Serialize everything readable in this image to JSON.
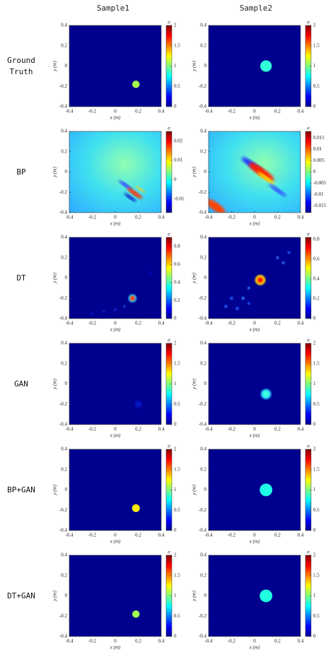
{
  "columns": [
    "Sample1",
    "Sample2"
  ],
  "axes": {
    "xlabel": "x (m)",
    "ylabel": "y (m)",
    "clabel": "σ",
    "xlim": [
      -0.4,
      0.4
    ],
    "ylim": [
      -0.4,
      0.4
    ],
    "xticks": [
      -0.4,
      -0.2,
      0,
      0.2,
      0.4
    ],
    "yticks": [
      -0.4,
      -0.2,
      0,
      0.2,
      0.4
    ]
  },
  "rows": [
    {
      "label": "Ground Truth",
      "panels": [
        {
          "clim": [
            0,
            2
          ],
          "cticks": [
            0,
            0.5,
            1,
            1.5,
            2
          ]
        },
        {
          "clim": [
            0,
            2
          ],
          "cticks": [
            0,
            0.5,
            1,
            1.5,
            2
          ]
        }
      ]
    },
    {
      "label": "BP",
      "panels": [
        {
          "clim": [
            -0.017,
            0.025
          ],
          "cticks": [
            -0.01,
            0,
            0.01,
            0.02
          ]
        },
        {
          "clim": [
            -0.018,
            0.018
          ],
          "cticks": [
            -0.015,
            -0.01,
            -0.005,
            0,
            0.005,
            0.01,
            0.015
          ]
        }
      ]
    },
    {
      "label": "DT",
      "panels": [
        {
          "clim": [
            0,
            0.9
          ],
          "cticks": [
            0,
            0.2,
            0.4,
            0.6,
            0.8
          ]
        },
        {
          "clim": [
            0,
            0.82
          ],
          "cticks": [
            0,
            0.2,
            0.4,
            0.6,
            0.8
          ]
        }
      ]
    },
    {
      "label": "GAN",
      "panels": [
        {
          "clim": [
            0,
            2
          ],
          "cticks": [
            0,
            0.5,
            1,
            1.5,
            2
          ]
        },
        {
          "clim": [
            0,
            2
          ],
          "cticks": [
            0,
            0.5,
            1,
            1.5,
            2
          ]
        }
      ]
    },
    {
      "label": "BP+GAN",
      "panels": [
        {
          "clim": [
            0,
            2
          ],
          "cticks": [
            0,
            0.5,
            1,
            1.5,
            2
          ]
        },
        {
          "clim": [
            0,
            2
          ],
          "cticks": [
            0,
            0.5,
            1,
            1.5,
            2
          ]
        }
      ]
    },
    {
      "label": "DT+GAN",
      "panels": [
        {
          "clim": [
            0,
            2
          ],
          "cticks": [
            0,
            0.5,
            1,
            1.5,
            2
          ]
        },
        {
          "clim": [
            0,
            2
          ],
          "cticks": [
            0,
            0.5,
            1,
            1.5,
            2
          ]
        }
      ]
    }
  ]
}
